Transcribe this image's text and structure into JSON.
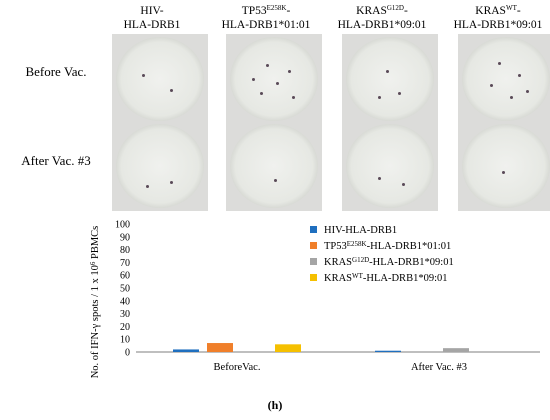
{
  "columns": [
    {
      "base": "HIV-",
      "sup": "",
      "tail": "",
      "line2": "HLA-DRB1"
    },
    {
      "base": "TP53",
      "sup": "E258K",
      "tail": "-",
      "line2": "HLA-DRB1*01:01"
    },
    {
      "base": "KRAS",
      "sup": "G12D",
      "tail": "-",
      "line2": "HLA-DRB1*09:01"
    },
    {
      "base": "KRAS",
      "sup": "WT",
      "tail": "-",
      "line2": "HLA-DRB1*09:01"
    }
  ],
  "rows": [
    {
      "label": "Before Vac."
    },
    {
      "label": "After Vac. #3"
    }
  ],
  "caption": "(h)",
  "chart_data": {
    "type": "bar",
    "ylabel_parts": {
      "pre": "No. of IFN-γ spots / 1 x 10",
      "sup": "6",
      "post": " PBMCs"
    },
    "ylim": [
      0,
      100
    ],
    "yticks": [
      "0",
      "10",
      "20",
      "30",
      "40",
      "50",
      "60",
      "70",
      "80",
      "90",
      "100"
    ],
    "categories": [
      "BeforeVac.",
      "After Vac. #3"
    ],
    "series": [
      {
        "name_parts": {
          "base": "HIV-HLA-DRB1",
          "sup": "",
          "tail": ""
        },
        "color": "#1f6fbf",
        "values": [
          2,
          1
        ]
      },
      {
        "name_parts": {
          "base": "TP53",
          "sup": "E258K",
          "tail": "-HLA-DRB1*01:01"
        },
        "color": "#f07f2a",
        "values": [
          7,
          0
        ]
      },
      {
        "name_parts": {
          "base": "KRAS",
          "sup": "G12D",
          "tail": "-HLA-DRB1*09:01"
        },
        "color": "#a5a5a5",
        "values": [
          0,
          3
        ]
      },
      {
        "name_parts": {
          "base": "KRAS",
          "sup": "WT",
          "tail": "-HLA-DRB1*09:01"
        },
        "color": "#f5c000",
        "values": [
          6,
          0
        ]
      }
    ],
    "legend_position": "top-right",
    "grid": false
  }
}
